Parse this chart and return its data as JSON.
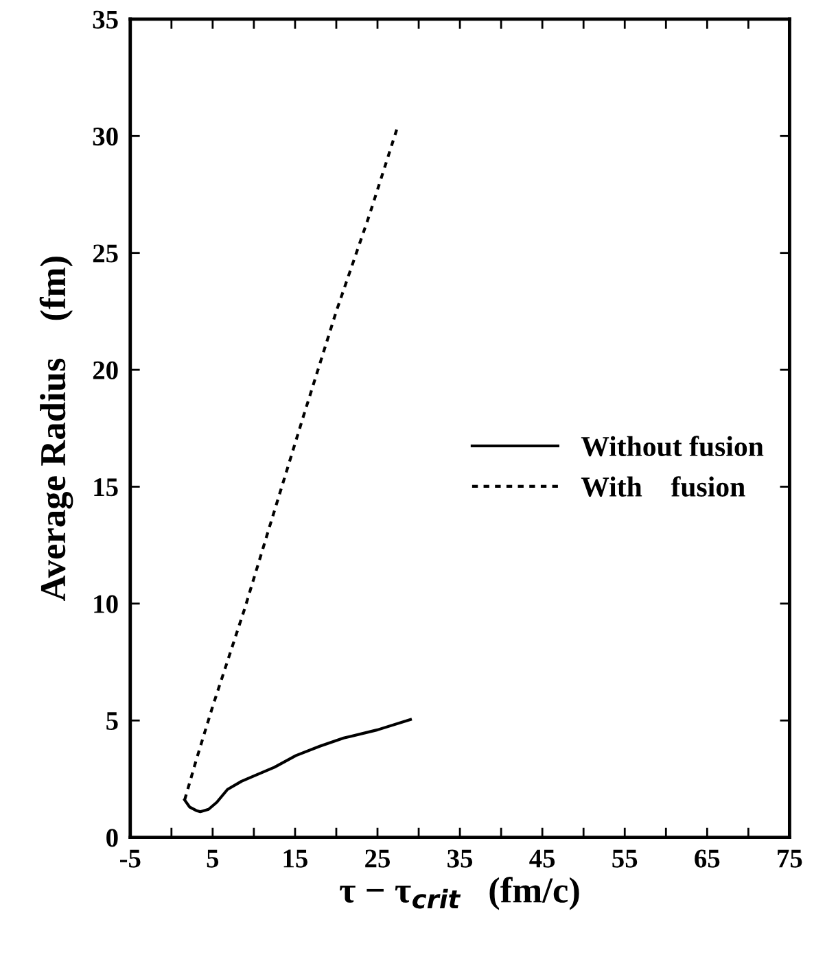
{
  "chart_data": {
    "type": "line",
    "xlabel": "τ − τ$_{crit}$   (fm/c)",
    "ylabel": "Average Radius    (fm)",
    "series": [
      {
        "name": "Without fusion",
        "color": "#000000",
        "line_style": "solid",
        "x": [
          1.6,
          2.2,
          3.0,
          3.5,
          4.5,
          5.5,
          6.8,
          8.5,
          10.1,
          12.5,
          15.1,
          18.0,
          20.9,
          25.0,
          29.0
        ],
        "values": [
          1.6,
          1.3,
          1.15,
          1.1,
          1.2,
          1.5,
          2.05,
          2.4,
          2.64,
          3.0,
          3.5,
          3.9,
          4.25,
          4.6,
          5.04
        ]
      },
      {
        "name": "With    fusion",
        "color": "#000000",
        "line_style": "dotted",
        "x": [
          1.6,
          3.0,
          5.0,
          8.9,
          12.0,
          16.0,
          20.0,
          24.0,
          27.4
        ],
        "values": [
          1.6,
          3.3,
          5.6,
          9.8,
          13.4,
          18.0,
          22.5,
          26.6,
          30.35
        ]
      }
    ],
    "xlim": [
      -5,
      75
    ],
    "ylim": [
      0,
      35
    ],
    "xticks": [
      -5,
      {
        "value": 0,
        "label": null
      },
      5,
      {
        "value": 10,
        "label": null
      },
      15,
      {
        "value": 20,
        "label": null
      },
      25,
      {
        "value": 30,
        "label": null
      },
      35,
      {
        "value": 40,
        "label": null
      },
      45,
      {
        "value": 50,
        "label": null
      },
      55,
      {
        "value": 60,
        "label": null
      },
      65,
      {
        "value": 70,
        "label": null
      },
      75
    ],
    "yticks": [
      0,
      5,
      10,
      15,
      20,
      25,
      30,
      35
    ],
    "legend": "right",
    "grid": false
  }
}
